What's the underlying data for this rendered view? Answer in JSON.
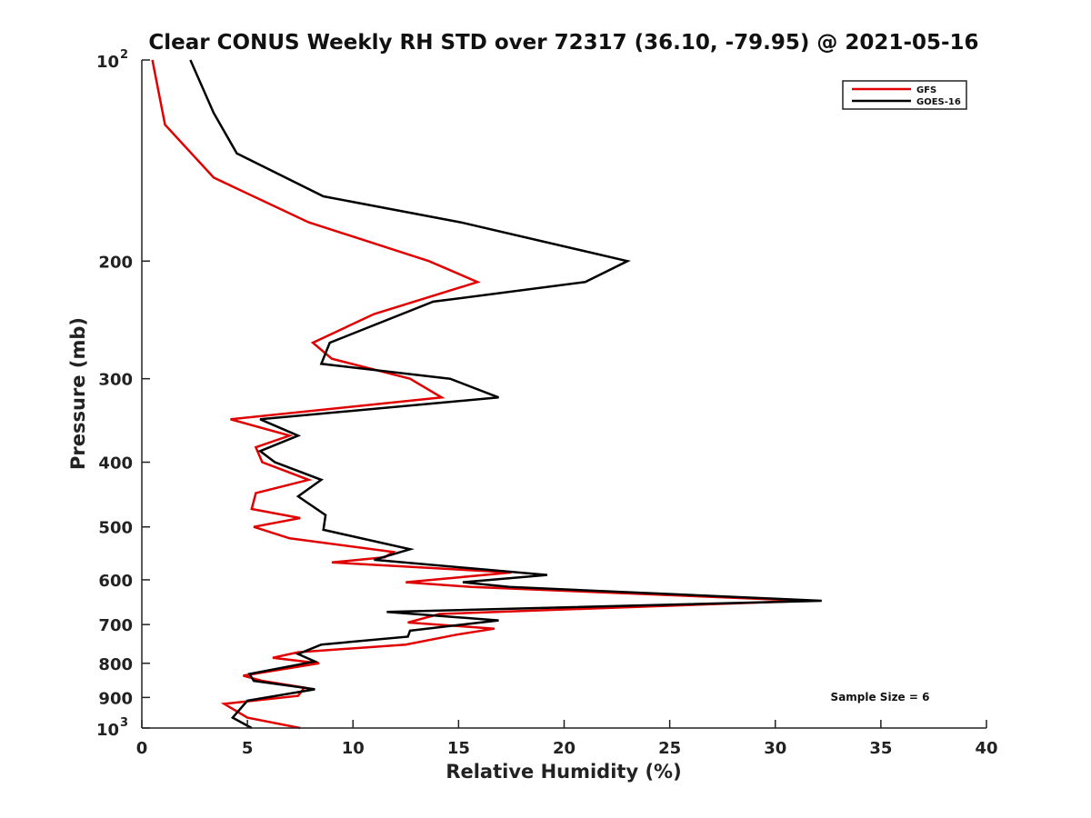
{
  "chart_data": {
    "type": "line",
    "title": "Clear CONUS Weekly RH STD over 72317 (36.10, -79.95) @ 2021-05-16",
    "xlabel": "Relative Humidity (%)",
    "ylabel": "Pressure (mb)",
    "xlim": [
      0,
      40
    ],
    "ylim": [
      1000,
      100
    ],
    "yscale": "log",
    "y_reversed": true,
    "x_ticks": [
      "0",
      "5",
      "10",
      "15",
      "20",
      "25",
      "30",
      "35",
      "40"
    ],
    "y_ticks": [
      {
        "value": 100,
        "base": "10",
        "exp": "2"
      },
      {
        "value": 200,
        "label": "200"
      },
      {
        "value": 300,
        "label": "300"
      },
      {
        "value": 400,
        "label": "400"
      },
      {
        "value": 500,
        "label": "500"
      },
      {
        "value": 600,
        "label": "600"
      },
      {
        "value": 700,
        "label": "700"
      },
      {
        "value": 800,
        "label": "800"
      },
      {
        "value": 900,
        "label": "900"
      },
      {
        "value": 1000,
        "base": "10",
        "exp": "3"
      }
    ],
    "grid": false,
    "legend_position": "top-right",
    "annotation": "Sample Size = 6",
    "series": [
      {
        "name": "GFS",
        "color": "#e00000",
        "points": [
          [
            0.5,
            100
          ],
          [
            1.1,
            125
          ],
          [
            3.4,
            150
          ],
          [
            7.9,
            175
          ],
          [
            13.6,
            200
          ],
          [
            15.9,
            215
          ],
          [
            11.0,
            240
          ],
          [
            8.1,
            265
          ],
          [
            9.0,
            280
          ],
          [
            12.7,
            300
          ],
          [
            14.2,
            320
          ],
          [
            4.2,
            345
          ],
          [
            7.0,
            365
          ],
          [
            5.4,
            380
          ],
          [
            5.7,
            400
          ],
          [
            7.9,
            425
          ],
          [
            5.4,
            445
          ],
          [
            5.2,
            470
          ],
          [
            7.5,
            485
          ],
          [
            5.3,
            500
          ],
          [
            7.0,
            520
          ],
          [
            11.9,
            545
          ],
          [
            11.5,
            555
          ],
          [
            9.0,
            565
          ],
          [
            17.5,
            585
          ],
          [
            12.5,
            605
          ],
          [
            15.6,
            615
          ],
          [
            31.5,
            645
          ],
          [
            14.1,
            675
          ],
          [
            12.6,
            695
          ],
          [
            16.7,
            710
          ],
          [
            14.9,
            725
          ],
          [
            12.5,
            750
          ],
          [
            7.4,
            770
          ],
          [
            6.2,
            785
          ],
          [
            8.4,
            800
          ],
          [
            4.8,
            835
          ],
          [
            5.1,
            840
          ],
          [
            5.7,
            850
          ],
          [
            7.7,
            870
          ],
          [
            7.4,
            895
          ],
          [
            3.9,
            920
          ],
          [
            5.0,
            965
          ],
          [
            7.5,
            1000
          ]
        ]
      },
      {
        "name": "GOES-16",
        "color": "#000000",
        "points": [
          [
            2.3,
            100
          ],
          [
            3.4,
            120
          ],
          [
            4.5,
            138
          ],
          [
            8.6,
            160
          ],
          [
            15.1,
            175
          ],
          [
            23.0,
            200
          ],
          [
            21.0,
            215
          ],
          [
            13.8,
            230
          ],
          [
            8.9,
            265
          ],
          [
            8.5,
            285
          ],
          [
            14.6,
            300
          ],
          [
            16.9,
            320
          ],
          [
            5.6,
            345
          ],
          [
            7.4,
            365
          ],
          [
            5.6,
            385
          ],
          [
            6.3,
            400
          ],
          [
            8.5,
            425
          ],
          [
            7.4,
            450
          ],
          [
            8.7,
            480
          ],
          [
            8.6,
            505
          ],
          [
            12.7,
            540
          ],
          [
            11.0,
            560
          ],
          [
            19.2,
            590
          ],
          [
            15.2,
            605
          ],
          [
            17.4,
            615
          ],
          [
            32.2,
            645
          ],
          [
            11.6,
            670
          ],
          [
            16.9,
            690
          ],
          [
            12.7,
            715
          ],
          [
            12.6,
            730
          ],
          [
            8.5,
            750
          ],
          [
            7.4,
            775
          ],
          [
            8.2,
            795
          ],
          [
            5.1,
            830
          ],
          [
            5.3,
            850
          ],
          [
            8.2,
            875
          ],
          [
            5.0,
            910
          ],
          [
            4.3,
            965
          ],
          [
            5.2,
            1000
          ]
        ]
      }
    ]
  }
}
